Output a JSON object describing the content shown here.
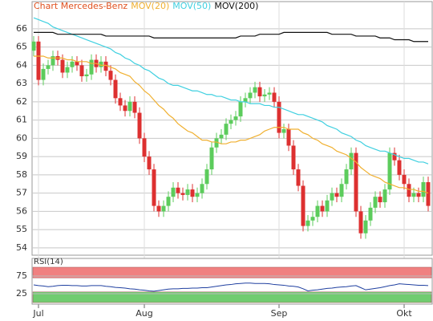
{
  "chart_data": [
    {
      "type": "candlestick",
      "title": "Chart Mercedes-Benz",
      "title_color": "#e0501e",
      "up_color": "#5ccc5c",
      "down_color": "#dd3030",
      "grid": true,
      "categories": [
        null,
        "Jul",
        null,
        null,
        null,
        null,
        null,
        null,
        null,
        null,
        null,
        null,
        null,
        null,
        null,
        null,
        null,
        null,
        null,
        null,
        null,
        null,
        null,
        "Aug",
        null,
        null,
        null,
        null,
        null,
        null,
        null,
        null,
        null,
        null,
        null,
        null,
        null,
        null,
        null,
        null,
        null,
        null,
        null,
        null,
        null,
        null,
        null,
        null,
        null,
        null,
        null,
        "Sep",
        null,
        null,
        null,
        null,
        null,
        null,
        null,
        null,
        null,
        null,
        null,
        null,
        null,
        null,
        null,
        null,
        null,
        null,
        null,
        null,
        null,
        null,
        null,
        null,
        null,
        "Okt",
        null,
        null,
        null,
        null,
        null
      ],
      "open": [
        64.8,
        65.3,
        63.2,
        63.8,
        64.0,
        64.5,
        64.3,
        63.6,
        63.9,
        64.2,
        64.0,
        63.4,
        63.5,
        64.3,
        63.9,
        64.2,
        63.7,
        63.2,
        62.2,
        61.8,
        61.5,
        62.0,
        61.4,
        60.0,
        59.0,
        58.3,
        56.3,
        56.0,
        56.3,
        56.8,
        57.3,
        57.0,
        56.9,
        57.2,
        56.8,
        57.0,
        57.5,
        58.3,
        59.5,
        60.0,
        60.2,
        60.8,
        61.0,
        61.2,
        62.0,
        62.2,
        62.5,
        62.8,
        62.3,
        62.4,
        62.5,
        62.0,
        60.3,
        60.5,
        59.6,
        58.3,
        57.4,
        55.2,
        55.5,
        55.7,
        56.3,
        56.0,
        56.6,
        57.0,
        56.8,
        57.5,
        58.3,
        59.2,
        56.0,
        54.8,
        55.5,
        56.2,
        56.8,
        56.5,
        57.2,
        59.2,
        58.8,
        58.0,
        57.5,
        56.8,
        57.0,
        56.8,
        57.6
      ],
      "high": [
        65.6,
        65.6,
        64.1,
        64.3,
        64.8,
        64.8,
        64.6,
        64.2,
        64.5,
        64.5,
        64.3,
        63.8,
        64.6,
        64.6,
        64.5,
        64.5,
        64.0,
        63.5,
        62.5,
        62.1,
        62.3,
        62.3,
        61.7,
        60.3,
        59.3,
        58.6,
        56.6,
        56.6,
        57.1,
        57.6,
        57.6,
        57.3,
        57.5,
        57.5,
        57.3,
        57.8,
        58.6,
        59.8,
        60.3,
        60.5,
        61.1,
        61.3,
        61.5,
        62.3,
        62.5,
        62.8,
        63.1,
        63.1,
        62.7,
        62.8,
        62.8,
        62.3,
        60.8,
        60.8,
        59.9,
        58.6,
        57.7,
        55.8,
        56.0,
        56.6,
        56.6,
        56.9,
        57.3,
        57.3,
        57.8,
        58.6,
        59.5,
        59.5,
        56.3,
        55.8,
        56.5,
        57.1,
        57.1,
        57.5,
        59.5,
        59.5,
        59.1,
        58.3,
        57.8,
        57.3,
        57.3,
        57.9,
        57.9
      ],
      "low": [
        64.5,
        62.9,
        62.9,
        63.5,
        63.7,
        64.0,
        63.3,
        63.3,
        63.6,
        63.7,
        63.1,
        63.1,
        63.2,
        63.6,
        63.6,
        63.4,
        62.9,
        61.9,
        61.5,
        61.2,
        61.2,
        61.1,
        59.7,
        58.7,
        58.0,
        56.0,
        55.7,
        55.7,
        56.0,
        56.5,
        56.7,
        56.6,
        56.6,
        56.5,
        56.5,
        56.7,
        57.2,
        58.0,
        59.2,
        59.7,
        59.9,
        60.5,
        60.7,
        60.9,
        61.7,
        61.9,
        62.2,
        62.0,
        62.0,
        62.1,
        61.7,
        60.0,
        60.0,
        59.3,
        58.0,
        57.1,
        54.9,
        54.9,
        55.2,
        55.4,
        55.7,
        55.7,
        56.3,
        56.5,
        56.5,
        57.2,
        58.0,
        55.7,
        54.5,
        54.5,
        55.2,
        55.9,
        56.2,
        56.2,
        56.9,
        58.5,
        57.7,
        57.2,
        56.5,
        56.5,
        56.5,
        56.5,
        56.0
      ],
      "close": [
        65.3,
        63.2,
        63.8,
        64.0,
        64.5,
        64.3,
        63.6,
        63.9,
        64.2,
        64.0,
        63.4,
        63.5,
        64.3,
        63.9,
        64.2,
        63.7,
        63.2,
        62.2,
        61.8,
        61.5,
        62.0,
        61.4,
        60.0,
        59.0,
        58.3,
        56.3,
        56.0,
        56.3,
        56.8,
        57.3,
        57.0,
        56.9,
        57.2,
        56.8,
        57.0,
        57.5,
        58.3,
        59.5,
        60.0,
        60.2,
        60.8,
        61.0,
        61.2,
        62.0,
        62.2,
        62.5,
        62.8,
        62.3,
        62.4,
        62.5,
        62.0,
        60.3,
        60.5,
        59.6,
        58.3,
        57.4,
        55.2,
        55.5,
        55.7,
        56.3,
        56.0,
        56.6,
        57.0,
        56.8,
        57.5,
        58.3,
        59.2,
        56.0,
        54.8,
        55.5,
        56.2,
        56.8,
        56.5,
        57.2,
        59.2,
        58.8,
        58.0,
        57.5,
        56.8,
        57.0,
        56.8,
        57.6,
        56.3
      ],
      "series": [
        {
          "name": "MOV(20)",
          "color": "#f0b030",
          "values": [
            64.5,
            64.5,
            64.5,
            64.4,
            64.4,
            64.4,
            64.4,
            64.3,
            64.3,
            64.2,
            64.2,
            64.2,
            64.1,
            64.1,
            64.0,
            64.0,
            63.9,
            63.8,
            63.6,
            63.5,
            63.4,
            63.1,
            62.9,
            62.6,
            62.4,
            62.1,
            61.8,
            61.6,
            61.3,
            61.1,
            60.8,
            60.6,
            60.4,
            60.3,
            60.1,
            59.9,
            59.9,
            59.8,
            59.8,
            59.7,
            59.7,
            59.8,
            59.8,
            59.9,
            59.9,
            60.0,
            60.1,
            60.2,
            60.4,
            60.5,
            60.6,
            60.6,
            60.6,
            60.5,
            60.5,
            60.5,
            60.3,
            60.2,
            60.0,
            59.9,
            59.7,
            59.6,
            59.5,
            59.3,
            59.2,
            59.1,
            58.9,
            58.7,
            58.4,
            58.2,
            58.0,
            57.9,
            57.8,
            57.6,
            57.5,
            57.4,
            57.3,
            57.3,
            57.2,
            57.2,
            57.1,
            57.1,
            57.0
          ]
        },
        {
          "name": "MOV(50)",
          "color": "#40d0e0",
          "values": [
            66.6,
            66.5,
            66.4,
            66.3,
            66.1,
            66.0,
            65.9,
            65.8,
            65.7,
            65.6,
            65.5,
            65.4,
            65.3,
            65.2,
            65.1,
            65.0,
            64.9,
            64.7,
            64.6,
            64.4,
            64.3,
            64.1,
            64.0,
            63.8,
            63.7,
            63.5,
            63.3,
            63.2,
            63.0,
            62.9,
            62.9,
            62.8,
            62.7,
            62.6,
            62.6,
            62.5,
            62.4,
            62.4,
            62.3,
            62.3,
            62.2,
            62.1,
            62.1,
            62.0,
            62.0,
            61.9,
            61.9,
            61.9,
            61.8,
            61.8,
            61.7,
            61.7,
            61.6,
            61.5,
            61.4,
            61.3,
            61.3,
            61.2,
            61.1,
            61.0,
            60.9,
            60.7,
            60.6,
            60.5,
            60.3,
            60.2,
            60.1,
            59.9,
            59.8,
            59.6,
            59.5,
            59.4,
            59.3,
            59.3,
            59.2,
            59.1,
            59.0,
            58.9,
            58.9,
            58.8,
            58.7,
            58.7,
            58.6
          ]
        },
        {
          "name": "MOV(200)",
          "color": "#111111",
          "values": [
            65.8,
            65.8,
            65.8,
            65.8,
            65.8,
            65.7,
            65.7,
            65.7,
            65.7,
            65.7,
            65.7,
            65.7,
            65.7,
            65.7,
            65.7,
            65.6,
            65.6,
            65.6,
            65.6,
            65.6,
            65.6,
            65.6,
            65.6,
            65.6,
            65.6,
            65.5,
            65.5,
            65.5,
            65.5,
            65.5,
            65.5,
            65.5,
            65.5,
            65.5,
            65.5,
            65.5,
            65.5,
            65.5,
            65.5,
            65.5,
            65.5,
            65.5,
            65.5,
            65.6,
            65.6,
            65.6,
            65.6,
            65.7,
            65.7,
            65.7,
            65.7,
            65.7,
            65.8,
            65.8,
            65.8,
            65.8,
            65.8,
            65.8,
            65.8,
            65.8,
            65.8,
            65.8,
            65.7,
            65.7,
            65.7,
            65.7,
            65.7,
            65.6,
            65.6,
            65.6,
            65.6,
            65.6,
            65.5,
            65.5,
            65.5,
            65.4,
            65.4,
            65.4,
            65.4,
            65.3,
            65.3,
            65.3,
            65.3
          ]
        }
      ],
      "ylim": [
        53.6,
        67.4
      ],
      "yticks": [
        54,
        55,
        56,
        57,
        58,
        59,
        60,
        61,
        62,
        63,
        64,
        65,
        66
      ]
    },
    {
      "type": "line",
      "title": "RSI(14)",
      "grid": true,
      "bands": [
        {
          "from": 70,
          "to": 100,
          "color": "#f08080"
        },
        {
          "from": 0,
          "to": 30,
          "color": "#70cc70"
        }
      ],
      "series": [
        {
          "color": "#2040a0",
          "values": [
            50,
            48,
            47,
            45,
            46,
            48,
            49,
            49,
            48,
            48,
            47,
            47,
            48,
            48,
            48,
            46,
            45,
            43,
            42,
            41,
            39,
            38,
            36,
            35,
            33,
            32,
            34,
            36,
            38,
            39,
            39,
            40,
            40,
            41,
            41,
            42,
            42,
            44,
            46,
            48,
            50,
            51,
            53,
            54,
            55,
            55,
            54,
            54,
            54,
            53,
            51,
            50,
            49,
            47,
            46,
            44,
            39,
            33,
            35,
            36,
            38,
            40,
            41,
            43,
            44,
            45,
            47,
            48,
            42,
            36,
            38,
            40,
            42,
            45,
            48,
            50,
            53,
            52,
            51,
            50,
            49,
            49,
            48
          ]
        }
      ],
      "ylim": [
        0,
        100
      ],
      "yticks": [
        25,
        75
      ]
    }
  ]
}
